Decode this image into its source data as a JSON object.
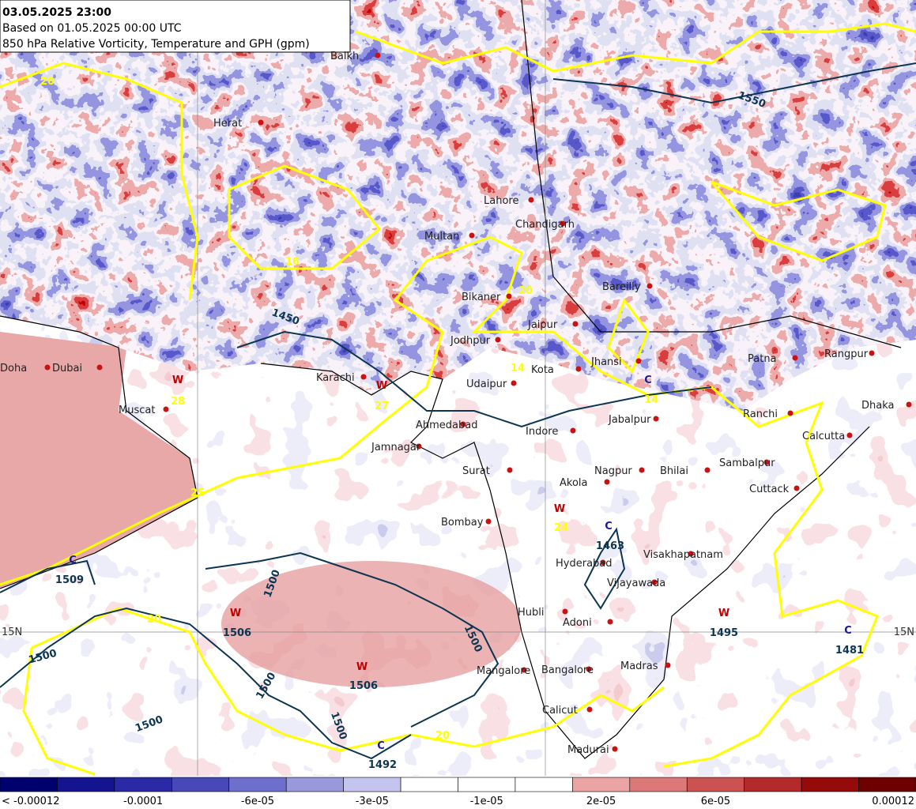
{
  "header": {
    "valid_time": "03.05.2025 23:00",
    "based_on": "Based on 01.05.2025 00:00 UTC",
    "title": "850 hPa Relative Vorticity, Temperature and GPH (gpm)"
  },
  "cities": [
    "Balkh",
    "Herat",
    "Lahore",
    "Chandigarh",
    "Multan",
    "Bikaner",
    "Jodhpur",
    "Jaipur",
    "Bareilly",
    "Kota",
    "Jhansi",
    "Udaipur",
    "Patna",
    "Rangpur",
    "Karachi",
    "Dubai",
    "Doha",
    "Muscat",
    "Ahmedabad",
    "Indore",
    "Jabalpur",
    "Ranchi",
    "Dhaka",
    "Calcutta",
    "Jamnagar",
    "Surat",
    "Akola",
    "Nagpur",
    "Bhilai",
    "Sambalpur",
    "Cuttack",
    "Bombay",
    "Hyderabad",
    "Visakhapatnam",
    "Vijayawada",
    "Hubli",
    "Adoni",
    "Mangalore",
    "Bangalore",
    "Madras",
    "Calicut",
    "Madurai"
  ],
  "pressure_centers": [
    {
      "letter": "W",
      "label": 28
    },
    {
      "letter": "W",
      "label": 27
    },
    {
      "letter": "C",
      "label": 14
    },
    {
      "letter": "W",
      "label": 24
    },
    {
      "letter": "C",
      "label": 1463
    },
    {
      "letter": "W",
      "label": 1506
    },
    {
      "letter": "W",
      "label": 1506
    },
    {
      "letter": "W",
      "label": 1495
    },
    {
      "letter": "C",
      "label": 1481
    },
    {
      "letter": "C",
      "label": 1492
    },
    {
      "letter": "C",
      "label": 1509
    }
  ],
  "gph_contour_labels": [
    1450,
    1550,
    1500,
    1500,
    1500,
    1500,
    1500,
    1500
  ],
  "temperature_contour_labels": [
    20,
    25,
    20,
    20,
    14,
    20,
    16
  ],
  "latitude_labels": [
    "15N",
    "15N"
  ],
  "colorbar": {
    "colors": [
      "#00006e",
      "#141490",
      "#2a2aa6",
      "#4848b8",
      "#6e6ecc",
      "#9898dc",
      "#c4c4ee",
      "#ffffff",
      "#ffffff",
      "#ffffff",
      "#eaa4a4",
      "#dc7878",
      "#cc5252",
      "#b42a2a",
      "#960a0a",
      "#6e0000"
    ],
    "labels": [
      "< -0.00012",
      "-0.0001",
      "-6e-05",
      "-3e-05",
      "-1e-05",
      "2e-05",
      "6e-05",
      "0.00012"
    ]
  }
}
